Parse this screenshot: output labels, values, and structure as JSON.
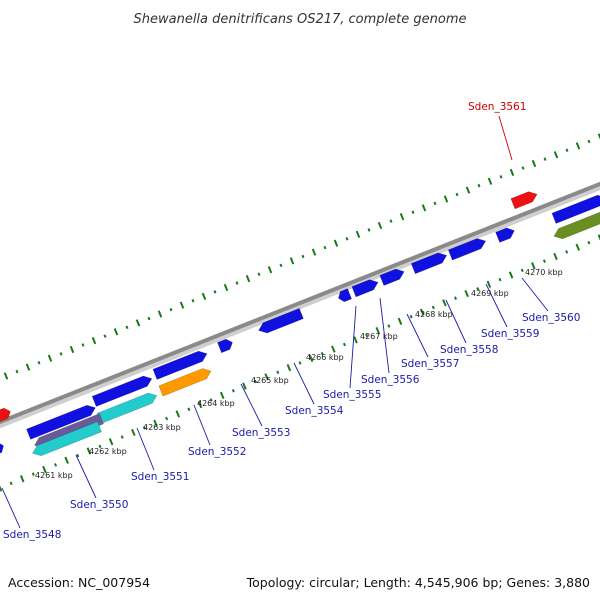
{
  "title": "Shewanella denitrificans OS217, complete genome",
  "footer": {
    "accession": "Accession: NC_007954",
    "summary": "Topology: circular; Length: 4,545,906 bp; Genes: 3,880"
  },
  "colors": {
    "backbone": "#8a8a8a",
    "ticks": "#1a7a1a",
    "gene_blue": "#1010e0",
    "gene_red": "#ee1111",
    "gene_cyan": "#22cccc",
    "gene_orange": "#ff9900",
    "gene_olive": "#6b8e23",
    "gene_purple": "#6a5a9a",
    "label_blue": "#1a1aaa",
    "label_red": "#cc0000"
  },
  "kbp_labels": [
    "4261 kbp",
    "4262 kbp",
    "4263 kbp",
    "4264 kbp",
    "4265 kbp",
    "4266 kbp",
    "4267 kbp",
    "4268 kbp",
    "4269 kbp",
    "4270 kbp"
  ],
  "gene_labels": [
    {
      "name": "Sden_3548",
      "color": "blue"
    },
    {
      "name": "Sden_3550",
      "color": "blue"
    },
    {
      "name": "Sden_3551",
      "color": "blue"
    },
    {
      "name": "Sden_3552",
      "color": "blue"
    },
    {
      "name": "Sden_3553",
      "color": "blue"
    },
    {
      "name": "Sden_3554",
      "color": "blue"
    },
    {
      "name": "Sden_3555",
      "color": "blue"
    },
    {
      "name": "Sden_3556",
      "color": "blue"
    },
    {
      "name": "Sden_3557",
      "color": "blue"
    },
    {
      "name": "Sden_3558",
      "color": "blue"
    },
    {
      "name": "Sden_3559",
      "color": "blue"
    },
    {
      "name": "Sden_3560",
      "color": "blue"
    },
    {
      "name": "Sden_3561",
      "color": "red"
    }
  ]
}
